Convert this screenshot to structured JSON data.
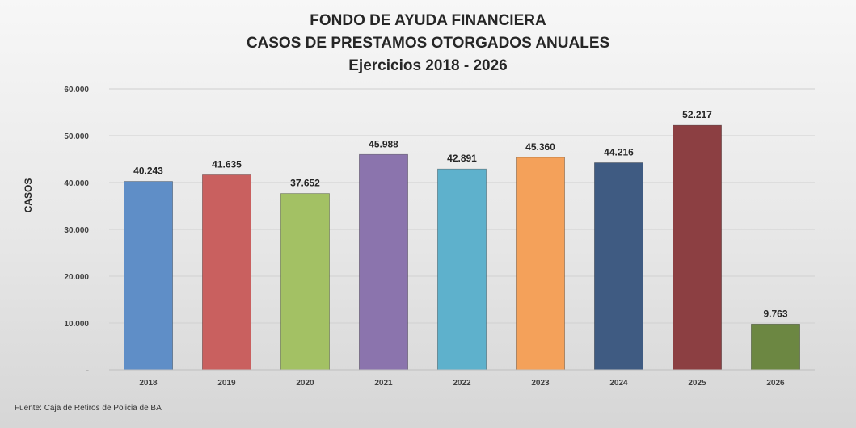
{
  "chart_data": {
    "type": "bar",
    "title": [
      "FONDO DE AYUDA FINANCIERA",
      "CASOS DE PRESTAMOS OTORGADOS ANUALES",
      "Ejercicios 2018 - 2026"
    ],
    "ylabel": "CASOS",
    "xlabel": "",
    "ylim": [
      0,
      60000
    ],
    "yticks": [
      "-",
      "10.000",
      "20.000",
      "30.000",
      "40.000",
      "50.000",
      "60.000"
    ],
    "categories": [
      "2018",
      "2019",
      "2020",
      "2021",
      "2022",
      "2023",
      "2024",
      "2025",
      "2026"
    ],
    "values": [
      40243,
      41635,
      37652,
      45988,
      42891,
      45360,
      44216,
      52217,
      9763
    ],
    "value_labels": [
      "40.243",
      "41.635",
      "37.652",
      "45.988",
      "42.891",
      "45.360",
      "44.216",
      "52.217",
      "9.763"
    ],
    "colors": [
      "#5f8ec7",
      "#c9605f",
      "#a3c164",
      "#8b74ad",
      "#5eb1cc",
      "#f4a15a",
      "#3f5b82",
      "#8c3f42",
      "#6c8742"
    ],
    "grid": true,
    "legend": "none"
  },
  "source": "Fuente: Caja de Retiros de Policia de BA"
}
